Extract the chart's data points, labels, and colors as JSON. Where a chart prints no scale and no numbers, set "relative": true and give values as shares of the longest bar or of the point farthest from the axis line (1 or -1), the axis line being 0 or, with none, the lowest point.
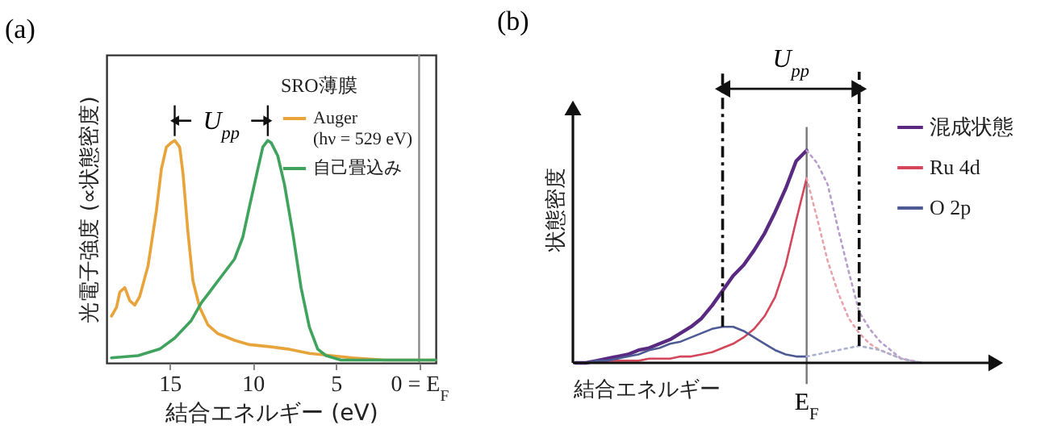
{
  "chart_data": [
    {
      "type": "line",
      "title": "(a)",
      "xlabel": "結合エネルギー (eV)",
      "ylabel": "光電子強度 (∝状態密度)",
      "relative": true,
      "legend": "top right",
      "legend_title": "SRO薄膜",
      "xlim": [
        18.8,
        -1
      ],
      "xticks": [
        15,
        10,
        5,
        {
          "value": 0,
          "label": "0 = E$_{F}$"
        }
      ],
      "series": [
        {
          "name": "Auger\n(hν = 529 eV)",
          "color": "#e8a33a",
          "x": [
            18.5,
            18.2,
            18.0,
            17.7,
            17.4,
            17.1,
            16.8,
            16.3,
            15.8,
            15.5,
            15.2,
            14.9,
            14.7,
            14.4,
            14.2,
            13.9,
            13.6,
            13.2,
            12.7,
            12.1,
            11.1,
            10.2,
            8.9,
            7.9,
            6.6,
            5.3,
            4.0,
            2.1,
            -1
          ],
          "values": [
            0.2,
            0.24,
            0.31,
            0.33,
            0.27,
            0.25,
            0.29,
            0.43,
            0.68,
            0.87,
            0.97,
            0.99,
            1.0,
            0.97,
            0.85,
            0.58,
            0.36,
            0.24,
            0.16,
            0.12,
            0.09,
            0.07,
            0.06,
            0.05,
            0.03,
            0.02,
            0.01,
            0,
            0
          ]
        },
        {
          "name": "自己畳込み",
          "color": "#3fa35e",
          "x": [
            18.5,
            16.9,
            15.6,
            14.7,
            13.7,
            13.1,
            12.4,
            11.8,
            11.1,
            10.6,
            10.2,
            9.7,
            9.4,
            9.1,
            8.9,
            8.5,
            8.1,
            7.6,
            7.1,
            6.6,
            6.1,
            5.6,
            4.7,
            1.5,
            -1
          ],
          "values": [
            0.01,
            0.02,
            0.05,
            0.1,
            0.18,
            0.26,
            0.33,
            0.39,
            0.46,
            0.56,
            0.7,
            0.87,
            0.97,
            1.0,
            0.99,
            0.93,
            0.8,
            0.58,
            0.33,
            0.15,
            0.05,
            0.02,
            0,
            0,
            0
          ]
        }
      ],
      "ref_lines": [
        {
          "axis": "x",
          "value": 0,
          "color": "#8a8a8a"
        }
      ],
      "annotations": [
        "U$_{pp}$"
      ]
    },
    {
      "type": "line",
      "title": "(b)",
      "xlabel": "結合エネルギー",
      "ylabel": "状態密度",
      "relative": true,
      "legend": "right",
      "categories": [
        null,
        null,
        null,
        null,
        null,
        null,
        null,
        null,
        null,
        null,
        null,
        null,
        null,
        null,
        null,
        null,
        null,
        null,
        null,
        null,
        null,
        null,
        null,
        null,
        null,
        null,
        null,
        null,
        null,
        null,
        null,
        null,
        null,
        null,
        null,
        null,
        null,
        null,
        null,
        null,
        null
      ],
      "series": [
        {
          "name": "混成状態",
          "color": "#5a2a82",
          "values": [
            0,
            0,
            0.01,
            0.02,
            0.03,
            0.04,
            0.06,
            0.07,
            0.09,
            0.11,
            0.14,
            0.17,
            0.21,
            0.27,
            0.34,
            0.41,
            0.46,
            0.53,
            0.61,
            0.71,
            0.82,
            0.95,
            1.0,
            null,
            null,
            null,
            null,
            null,
            null,
            null,
            null,
            null,
            null,
            null,
            null,
            null,
            null,
            null,
            null,
            null,
            null
          ]
        },
        {
          "color": "#b89ccb",
          "line_style": "dotted",
          "values": [
            null,
            null,
            null,
            null,
            null,
            null,
            null,
            null,
            null,
            null,
            null,
            null,
            null,
            null,
            null,
            null,
            null,
            null,
            null,
            null,
            null,
            null,
            1.0,
            0.94,
            0.84,
            0.63,
            0.43,
            0.24,
            0.16,
            0.1,
            0.06,
            0.02,
            0.01,
            0,
            null,
            null,
            null,
            null,
            null,
            null,
            null
          ]
        },
        {
          "name": "Ru 4d",
          "color": "#d4475a",
          "values": [
            null,
            null,
            0,
            0.01,
            0.01,
            0.01,
            0.01,
            0.02,
            0.02,
            0.02,
            0.03,
            0.03,
            0.04,
            0.05,
            0.07,
            0.09,
            0.12,
            0.16,
            0.22,
            0.31,
            0.46,
            0.67,
            0.87,
            null,
            null,
            null,
            null,
            null,
            null,
            null,
            null,
            null,
            null,
            null,
            null,
            null,
            null,
            null,
            null,
            null,
            null
          ]
        },
        {
          "color": "#e8a2ac",
          "line_style": "dotted",
          "values": [
            null,
            null,
            null,
            null,
            null,
            null,
            null,
            null,
            null,
            null,
            null,
            null,
            null,
            null,
            null,
            null,
            null,
            null,
            null,
            null,
            null,
            null,
            0.87,
            0.68,
            0.48,
            0.33,
            0.21,
            0.14,
            0.09,
            0.06,
            0.04,
            0.02,
            0.01,
            0,
            null,
            null,
            null,
            null,
            null,
            null,
            null
          ]
        },
        {
          "name": "O 2p",
          "color": "#4d5a94",
          "values": [
            0,
            0,
            0.01,
            0.01,
            0.02,
            0.03,
            0.04,
            0.06,
            0.07,
            0.09,
            0.1,
            0.12,
            0.14,
            0.16,
            0.17,
            0.17,
            0.15,
            0.12,
            0.09,
            0.06,
            0.04,
            0.03,
            0.03,
            null,
            null,
            null,
            null,
            null,
            null,
            null,
            null,
            null,
            null,
            null,
            null,
            null,
            null,
            null,
            null,
            null,
            null
          ]
        },
        {
          "color": "#aab0d0",
          "line_style": "dotted",
          "values": [
            null,
            null,
            null,
            null,
            null,
            null,
            null,
            null,
            null,
            null,
            null,
            null,
            null,
            null,
            null,
            null,
            null,
            null,
            null,
            null,
            null,
            null,
            0.03,
            0.04,
            0.05,
            0.06,
            0.07,
            0.08,
            0.07,
            0.06,
            0.04,
            0.02,
            0.01,
            0,
            null,
            null,
            null,
            null,
            null,
            null,
            null
          ]
        }
      ],
      "annotations": [
        "U$_{pp}$",
        "E$_{F}$"
      ]
    }
  ]
}
